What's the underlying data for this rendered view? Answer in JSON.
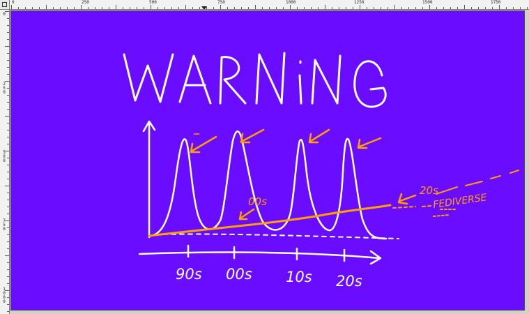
{
  "rulers": {
    "horizontal_labels": [
      "0",
      "250",
      "500",
      "750",
      "1000",
      "1250",
      "1500",
      "1750"
    ],
    "vertical_labels": [
      "0",
      "250",
      "500",
      "750",
      "1000"
    ]
  },
  "drawing": {
    "title": "WARNiNG",
    "x_labels": [
      "90s",
      "00s",
      "10s",
      "20s"
    ],
    "orange_labels": {
      "curve_label": "00s",
      "end_year": "20s",
      "end_name": "FEDIVERSE"
    },
    "colors": {
      "background": "#6a0cff",
      "chalk": "#ffffff",
      "accent": "#ff9f00"
    }
  }
}
